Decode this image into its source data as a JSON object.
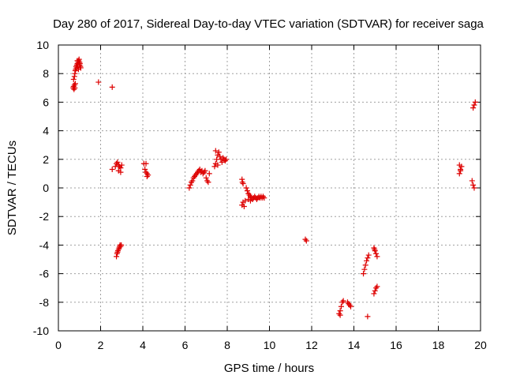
{
  "chart_data": {
    "type": "scatter",
    "title": "Day 280 of 2017, Sidereal Day-to-day VTEC variation (SDTVAR) for receiver saga",
    "xlabel": "GPS time / hours",
    "ylabel": "SDTVAR / TECUs",
    "xlim": [
      0,
      20
    ],
    "ylim": [
      -10,
      10
    ],
    "xticks": [
      "0",
      "2",
      "4",
      "6",
      "8",
      "10",
      "12",
      "14",
      "16",
      "18",
      "20"
    ],
    "yticks": [
      "10",
      "8",
      "6",
      "4",
      "2",
      "0",
      "-2",
      "-4",
      "-6",
      "-8",
      "-10"
    ],
    "grid": true,
    "marker": "+",
    "marker_color": "#dd0000",
    "series": [
      {
        "name": "SDTVAR",
        "points": [
          [
            0.7,
            7.0
          ],
          [
            0.72,
            7.1
          ],
          [
            0.74,
            6.9
          ],
          [
            0.76,
            7.2
          ],
          [
            0.78,
            7.0
          ],
          [
            0.8,
            7.3
          ],
          [
            0.72,
            7.6
          ],
          [
            0.76,
            7.8
          ],
          [
            0.78,
            8.0
          ],
          [
            0.8,
            8.2
          ],
          [
            0.82,
            8.3
          ],
          [
            0.84,
            8.5
          ],
          [
            0.86,
            8.4
          ],
          [
            0.88,
            8.6
          ],
          [
            0.9,
            8.7
          ],
          [
            0.92,
            8.5
          ],
          [
            0.94,
            8.8
          ],
          [
            0.96,
            8.9
          ],
          [
            0.98,
            9.0
          ],
          [
            1.0,
            8.8
          ],
          [
            1.02,
            8.7
          ],
          [
            1.04,
            8.5
          ],
          [
            1.06,
            8.4
          ],
          [
            0.9,
            8.9
          ],
          [
            0.95,
            8.3
          ],
          [
            1.0,
            8.6
          ],
          [
            1.9,
            7.4
          ],
          [
            2.55,
            7.05
          ],
          [
            2.55,
            1.3
          ],
          [
            2.7,
            1.5
          ],
          [
            2.75,
            1.7
          ],
          [
            2.8,
            1.8
          ],
          [
            2.85,
            1.6
          ],
          [
            2.9,
            1.5
          ],
          [
            2.95,
            1.4
          ],
          [
            3.0,
            1.6
          ],
          [
            2.85,
            1.2
          ],
          [
            2.95,
            1.1
          ],
          [
            2.75,
            -4.8
          ],
          [
            2.78,
            -4.6
          ],
          [
            2.8,
            -4.5
          ],
          [
            2.82,
            -4.4
          ],
          [
            2.85,
            -4.3
          ],
          [
            2.88,
            -4.2
          ],
          [
            2.9,
            -4.1
          ],
          [
            2.92,
            -4.0
          ],
          [
            2.95,
            -4.1
          ],
          [
            2.98,
            -4.0
          ],
          [
            4.05,
            1.7
          ],
          [
            4.15,
            1.7
          ],
          [
            4.1,
            1.3
          ],
          [
            4.15,
            1.1
          ],
          [
            4.2,
            1.0
          ],
          [
            4.25,
            0.9
          ],
          [
            4.2,
            0.8
          ],
          [
            6.2,
            0.0
          ],
          [
            6.25,
            0.2
          ],
          [
            6.3,
            0.4
          ],
          [
            6.35,
            0.5
          ],
          [
            6.4,
            0.7
          ],
          [
            6.45,
            0.8
          ],
          [
            6.5,
            0.9
          ],
          [
            6.55,
            1.0
          ],
          [
            6.6,
            1.1
          ],
          [
            6.65,
            1.2
          ],
          [
            6.7,
            1.3
          ],
          [
            6.75,
            1.1
          ],
          [
            6.8,
            1.2
          ],
          [
            6.85,
            1.0
          ],
          [
            6.9,
            1.1
          ],
          [
            6.95,
            1.2
          ],
          [
            7.0,
            0.7
          ],
          [
            7.05,
            0.5
          ],
          [
            7.1,
            0.4
          ],
          [
            7.15,
            1.0
          ],
          [
            7.4,
            1.5
          ],
          [
            7.45,
            1.7
          ],
          [
            7.5,
            2.0
          ],
          [
            7.55,
            2.3
          ],
          [
            7.6,
            2.5
          ],
          [
            7.65,
            2.2
          ],
          [
            7.7,
            2.0
          ],
          [
            7.75,
            1.8
          ],
          [
            7.8,
            2.1
          ],
          [
            7.85,
            2.0
          ],
          [
            7.9,
            1.9
          ],
          [
            7.95,
            2.0
          ],
          [
            7.45,
            2.6
          ],
          [
            7.55,
            1.6
          ],
          [
            8.7,
            0.6
          ],
          [
            8.72,
            0.4
          ],
          [
            8.75,
            0.3
          ],
          [
            8.7,
            -1.2
          ],
          [
            8.75,
            -1.0
          ],
          [
            8.8,
            -1.3
          ],
          [
            8.85,
            -0.9
          ],
          [
            8.9,
            0.0
          ],
          [
            8.95,
            -0.2
          ],
          [
            9.0,
            -0.4
          ],
          [
            9.05,
            -0.5
          ],
          [
            9.1,
            -0.6
          ],
          [
            9.15,
            -0.7
          ],
          [
            9.2,
            -0.8
          ],
          [
            9.25,
            -0.7
          ],
          [
            9.3,
            -0.6
          ],
          [
            9.35,
            -0.7
          ],
          [
            9.4,
            -0.8
          ],
          [
            9.45,
            -0.7
          ],
          [
            9.5,
            -0.6
          ],
          [
            9.55,
            -0.7
          ],
          [
            9.6,
            -0.6
          ],
          [
            9.65,
            -0.7
          ],
          [
            9.7,
            -0.6
          ],
          [
            9.75,
            -0.7
          ],
          [
            9.0,
            -0.8
          ],
          [
            9.1,
            -0.9
          ],
          [
            11.7,
            -3.6
          ],
          [
            11.75,
            -3.7
          ],
          [
            13.3,
            -8.8
          ],
          [
            13.35,
            -8.6
          ],
          [
            13.4,
            -8.3
          ],
          [
            13.45,
            -8.0
          ],
          [
            13.5,
            -7.9
          ],
          [
            13.7,
            -8.0
          ],
          [
            13.75,
            -8.1
          ],
          [
            13.8,
            -8.2
          ],
          [
            13.85,
            -8.3
          ],
          [
            13.35,
            -8.9
          ],
          [
            14.45,
            -6.0
          ],
          [
            14.5,
            -5.7
          ],
          [
            14.55,
            -5.4
          ],
          [
            14.6,
            -5.1
          ],
          [
            14.65,
            -4.9
          ],
          [
            14.7,
            -4.7
          ],
          [
            14.65,
            -9.0
          ],
          [
            14.95,
            -4.2
          ],
          [
            15.0,
            -4.4
          ],
          [
            15.05,
            -4.6
          ],
          [
            15.1,
            -4.8
          ],
          [
            14.98,
            -4.3
          ],
          [
            14.95,
            -7.4
          ],
          [
            15.0,
            -7.2
          ],
          [
            15.05,
            -7.0
          ],
          [
            15.1,
            -6.9
          ],
          [
            19.0,
            1.0
          ],
          [
            19.05,
            1.3
          ],
          [
            19.1,
            1.5
          ],
          [
            19.0,
            1.6
          ],
          [
            19.05,
            1.2
          ],
          [
            19.6,
            0.5
          ],
          [
            19.65,
            0.2
          ],
          [
            19.7,
            0.0
          ],
          [
            19.65,
            5.6
          ],
          [
            19.7,
            5.8
          ],
          [
            19.75,
            6.0
          ]
        ]
      }
    ]
  }
}
